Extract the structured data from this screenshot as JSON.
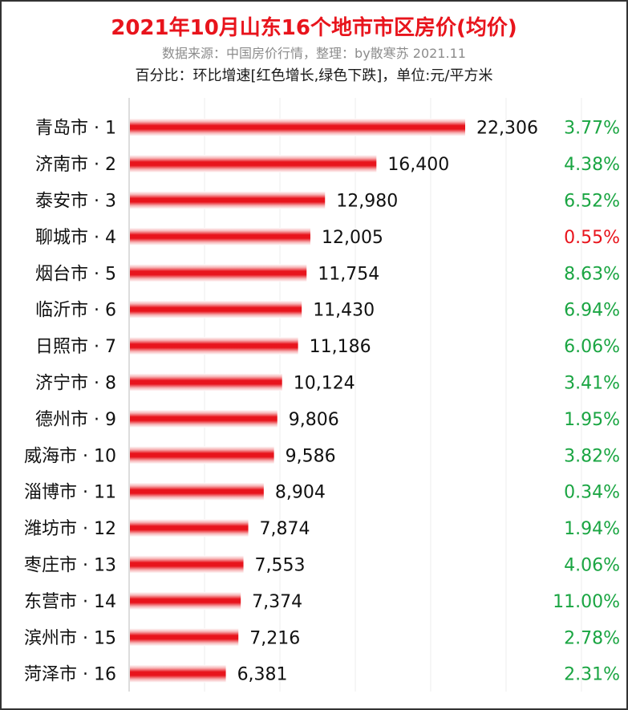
{
  "chart_data": {
    "type": "bar",
    "orientation": "horizontal",
    "title": "2021年10月山东16个地市市区房价(均价)",
    "subtitle": "数据来源：中国房价行情，整理：by散寒苏 2021.11",
    "note": "百分比：环比增速[红色增长,绿色下跌]，单位:元/平方米",
    "categories": [
      "青岛市 · 1",
      "济南市 · 2",
      "泰安市 · 3",
      "聊城市 · 4",
      "烟台市 · 5",
      "临沂市 · 6",
      "日照市 · 7",
      "济宁市 · 8",
      "德州市 · 9",
      "威海市 · 10",
      "淄博市 · 11",
      "潍坊市 · 12",
      "枣庄市 · 13",
      "东营市 · 14",
      "滨州市 · 15",
      "菏泽市 · 16"
    ],
    "values": [
      22306,
      16400,
      12980,
      12005,
      11754,
      11430,
      11186,
      10124,
      9806,
      9586,
      8904,
      7874,
      7553,
      7374,
      7216,
      6381
    ],
    "value_labels": [
      "22,306",
      "16,400",
      "12,980",
      "12,005",
      "11,754",
      "11,430",
      "11,186",
      "10,124",
      "9,806",
      "9,586",
      "8,904",
      "7,874",
      "7,553",
      "7,374",
      "7,216",
      "6,381"
    ],
    "mom_change": [
      "3.77%",
      "4.38%",
      "6.52%",
      "0.55%",
      "8.63%",
      "6.94%",
      "6.06%",
      "3.41%",
      "1.95%",
      "3.82%",
      "0.34%",
      "1.94%",
      "4.06%",
      "11.00%",
      "2.78%",
      "2.31%"
    ],
    "mom_direction": [
      "down",
      "down",
      "down",
      "up",
      "down",
      "down",
      "down",
      "down",
      "down",
      "down",
      "down",
      "down",
      "down",
      "down",
      "down",
      "down"
    ],
    "xlim": [
      0,
      22306
    ],
    "grid": true,
    "colors": {
      "bar": "#e8141c",
      "up": "#e8141c",
      "down": "#1aa542",
      "title": "#e8141c",
      "subtitle": "#8c8c8c"
    }
  }
}
